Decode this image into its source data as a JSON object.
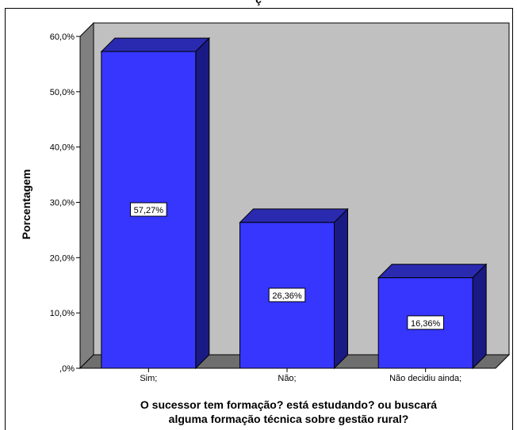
{
  "window": {
    "title_fragment": "ç"
  },
  "colors": {
    "bar_front": "#3636ff",
    "bar_top": "#2a2ab0",
    "bar_side": "#1a1a85",
    "back_wall": "#c0c0c0",
    "side_wall": "#808080",
    "floor": "#6e6e6e"
  },
  "chart_data": {
    "type": "bar",
    "categories": [
      "Sim;",
      "Não;",
      "Não decidiu ainda;"
    ],
    "values": [
      57.27,
      26.36,
      16.36
    ],
    "data_labels": [
      "57,27%",
      "26,36%",
      "16,36%"
    ],
    "ylabel": "Porcentagem",
    "xlabel_lines": [
      "O sucessor tem formação? está estudando? ou buscará",
      "alguma formação técnica sobre gestão rural?"
    ],
    "y_ticks": [
      0,
      10,
      20,
      30,
      40,
      50,
      60
    ],
    "y_tick_labels": [
      ",0%",
      "10,0%",
      "20,0%",
      "30,0%",
      "40,0%",
      "50,0%",
      "60,0%"
    ],
    "ylim": [
      0,
      60
    ],
    "grid": false,
    "style_3d": true
  }
}
